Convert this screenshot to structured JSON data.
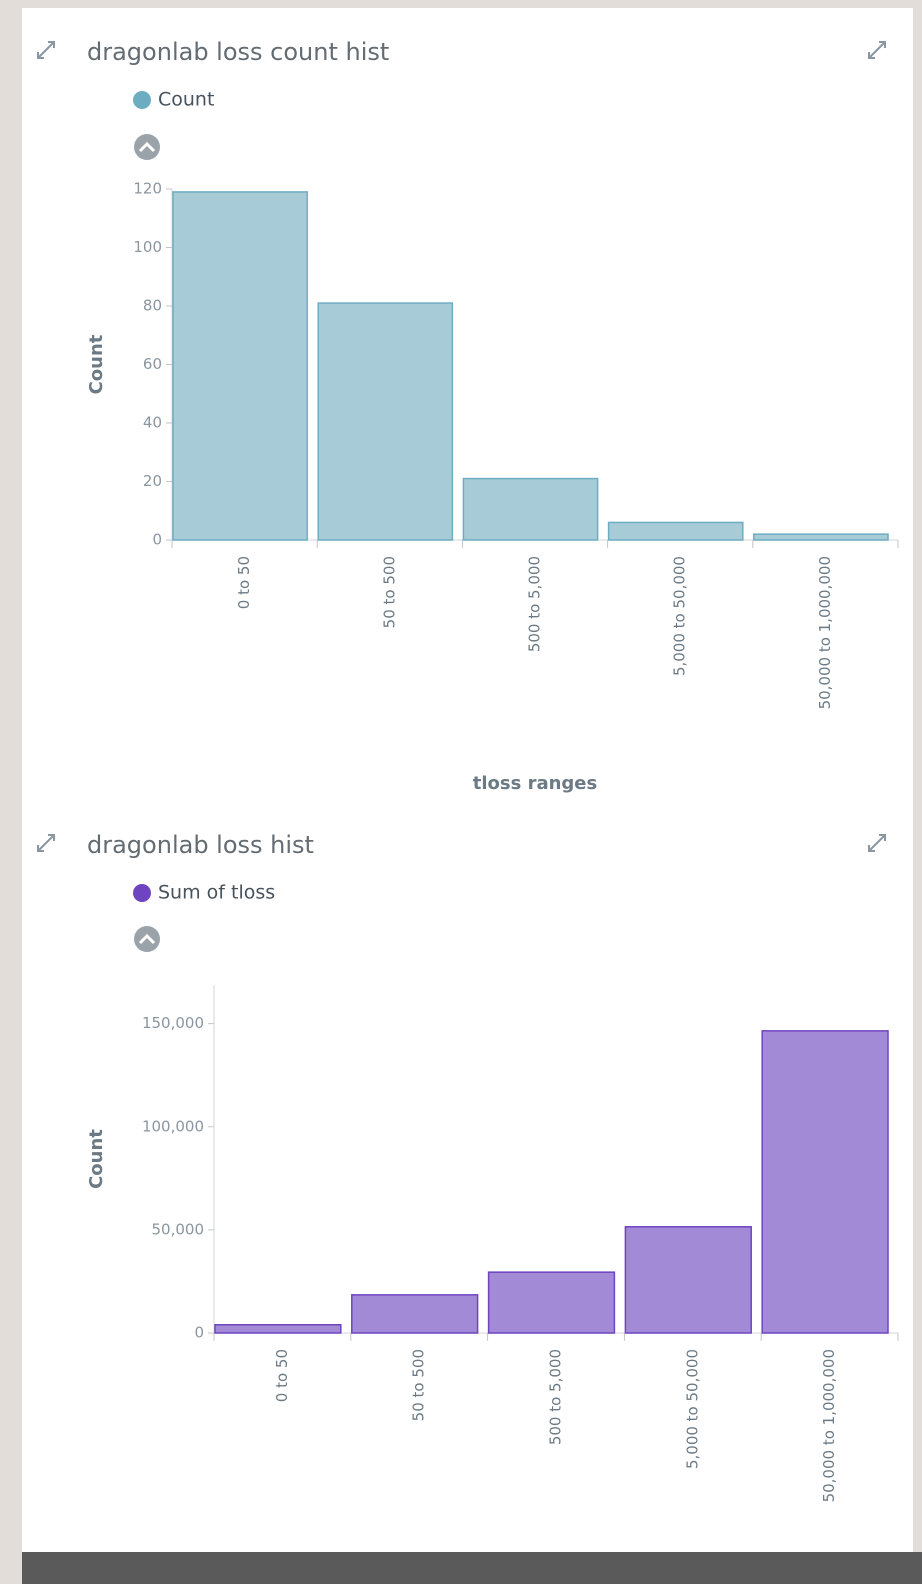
{
  "chart_data": [
    {
      "type": "bar",
      "title": "dragonlab loss count hist",
      "ylabel": "Count",
      "xlabel": "tloss ranges",
      "categories": [
        "0 to 50",
        "50 to 500",
        "500 to 5,000",
        "5,000 to 50,000",
        "50,000 to 1,000,000"
      ],
      "series": [
        {
          "name": "Count",
          "color": "#6eadc1",
          "values": [
            119,
            81,
            21,
            6,
            2
          ]
        }
      ],
      "ylim": [
        0,
        120
      ],
      "yticks": [
        0,
        20,
        40,
        60,
        80,
        100,
        120
      ]
    },
    {
      "type": "bar",
      "title": "dragonlab loss hist",
      "ylabel": "Count",
      "categories": [
        "0 to 50",
        "50 to 500",
        "500 to 5,000",
        "5,000 to 50,000",
        "50,000 to 1,000,000"
      ],
      "series": [
        {
          "name": "Sum of tloss",
          "color": "#6f44c0",
          "values": [
            4000,
            18500,
            29500,
            51500,
            146500
          ]
        }
      ],
      "ylim": [
        0,
        160000
      ],
      "yticks": [
        0,
        {
          "value": 50000,
          "label": "50,000"
        },
        {
          "value": 100000,
          "label": "100,000"
        },
        {
          "value": 150000,
          "label": "150,000"
        }
      ]
    }
  ]
}
